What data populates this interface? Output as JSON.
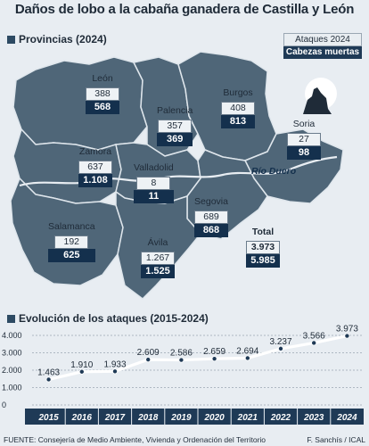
{
  "title": "Daños de lobo a la cabaña ganadera de Castilla y León",
  "section_map": "Provincias (2024)",
  "legend": {
    "attacks": "Ataques 2024",
    "deaths": "Cabezas muertas"
  },
  "river_label": "Río Duero",
  "provinces": [
    {
      "name": "León",
      "attacks": "388",
      "deaths": "568"
    },
    {
      "name": "Palencia",
      "attacks": "357",
      "deaths": "369"
    },
    {
      "name": "Burgos",
      "attacks": "408",
      "deaths": "813"
    },
    {
      "name": "Soria",
      "attacks": "27",
      "deaths": "98"
    },
    {
      "name": "Zamora",
      "attacks": "637",
      "deaths": "1.108"
    },
    {
      "name": "Valladolid",
      "attacks": "8",
      "deaths": "11"
    },
    {
      "name": "Segovia",
      "attacks": "689",
      "deaths": "868"
    },
    {
      "name": "Salamanca",
      "attacks": "192",
      "deaths": "625"
    },
    {
      "name": "Ávila",
      "attacks": "1.267",
      "deaths": "1.525"
    },
    {
      "name": "Total",
      "attacks": "3.973",
      "deaths": "5.985"
    }
  ],
  "section_chart": "Evolución de los ataques (2015-2024)",
  "chart_data": {
    "type": "line",
    "x": [
      "2015",
      "2016",
      "2017",
      "2018",
      "2019",
      "2020",
      "2021",
      "2022",
      "2023",
      "2024"
    ],
    "values": [
      1463,
      1910,
      1933,
      2609,
      2586,
      2659,
      2694,
      3237,
      3566,
      3973
    ],
    "value_labels": [
      "1.463",
      "1.910",
      "1.933",
      "2.609",
      "2.586",
      "2.659",
      "2.694",
      "3.237",
      "3.566",
      "3.973"
    ],
    "y_ticks": [
      "4.000",
      "3.000",
      "2.000",
      "1.000",
      "0"
    ],
    "y_tick_values": [
      4000,
      3000,
      2000,
      1000,
      0
    ],
    "ylim": [
      0,
      4000
    ],
    "grid": true,
    "colors": {
      "line": "#ffffff",
      "point": "#1f3a56",
      "axis_band": "#1f3a56"
    }
  },
  "footer": "FUENTE: Consejería de Medio Ambiente, Vivienda y Ordenación del Territorio",
  "credit": "F. Sanchís / ICAL",
  "colors": {
    "map_fill": "#4f6678",
    "map_stroke": "#dfe6ec",
    "dark": "#14304d",
    "river": "#e8edf2"
  }
}
